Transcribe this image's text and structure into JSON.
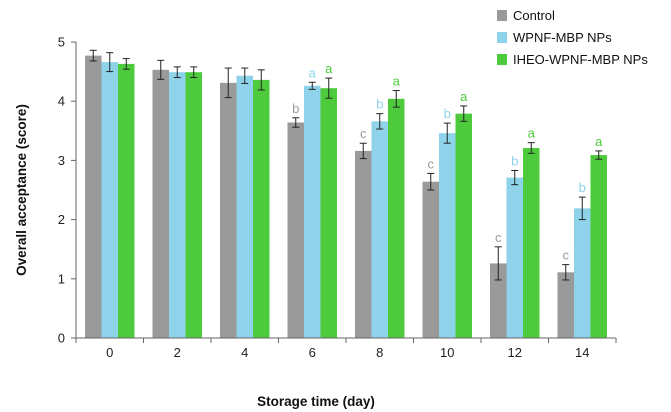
{
  "chart_data": {
    "type": "bar",
    "xlabel": "Storage time (day)",
    "ylabel": "Overall acceptance (score)",
    "ylim": [
      0,
      5
    ],
    "yticks": [
      0,
      1,
      2,
      3,
      4,
      5
    ],
    "categories": [
      "0",
      "2",
      "4",
      "6",
      "8",
      "10",
      "12",
      "14"
    ],
    "legend_position": "top-right",
    "grid": false,
    "series": [
      {
        "name": "Control",
        "color": "#9a9a9a",
        "values": [
          4.77,
          4.53,
          4.31,
          3.64,
          3.16,
          2.64,
          1.26,
          1.11
        ],
        "errors": [
          0.09,
          0.16,
          0.25,
          0.08,
          0.13,
          0.14,
          0.28,
          0.13
        ],
        "sig_labels": [
          "",
          "",
          "",
          "b",
          "c",
          "c",
          "c",
          "c"
        ]
      },
      {
        "name": "WPNF-MBP NPs",
        "color": "#8ed3ea",
        "values": [
          4.66,
          4.49,
          4.43,
          4.26,
          3.66,
          3.46,
          2.71,
          2.19
        ],
        "errors": [
          0.16,
          0.09,
          0.13,
          0.06,
          0.13,
          0.17,
          0.12,
          0.19
        ],
        "sig_labels": [
          "",
          "",
          "",
          "a",
          "b",
          "b",
          "b",
          "b"
        ]
      },
      {
        "name": "IHEO-WPNF-MBP NPs",
        "color": "#4ecb3c",
        "values": [
          4.63,
          4.49,
          4.36,
          4.22,
          4.04,
          3.79,
          3.21,
          3.09
        ],
        "errors": [
          0.09,
          0.09,
          0.17,
          0.17,
          0.14,
          0.13,
          0.09,
          0.07
        ],
        "sig_labels": [
          "",
          "",
          "",
          "a",
          "a",
          "a",
          "a",
          "a"
        ]
      }
    ]
  }
}
